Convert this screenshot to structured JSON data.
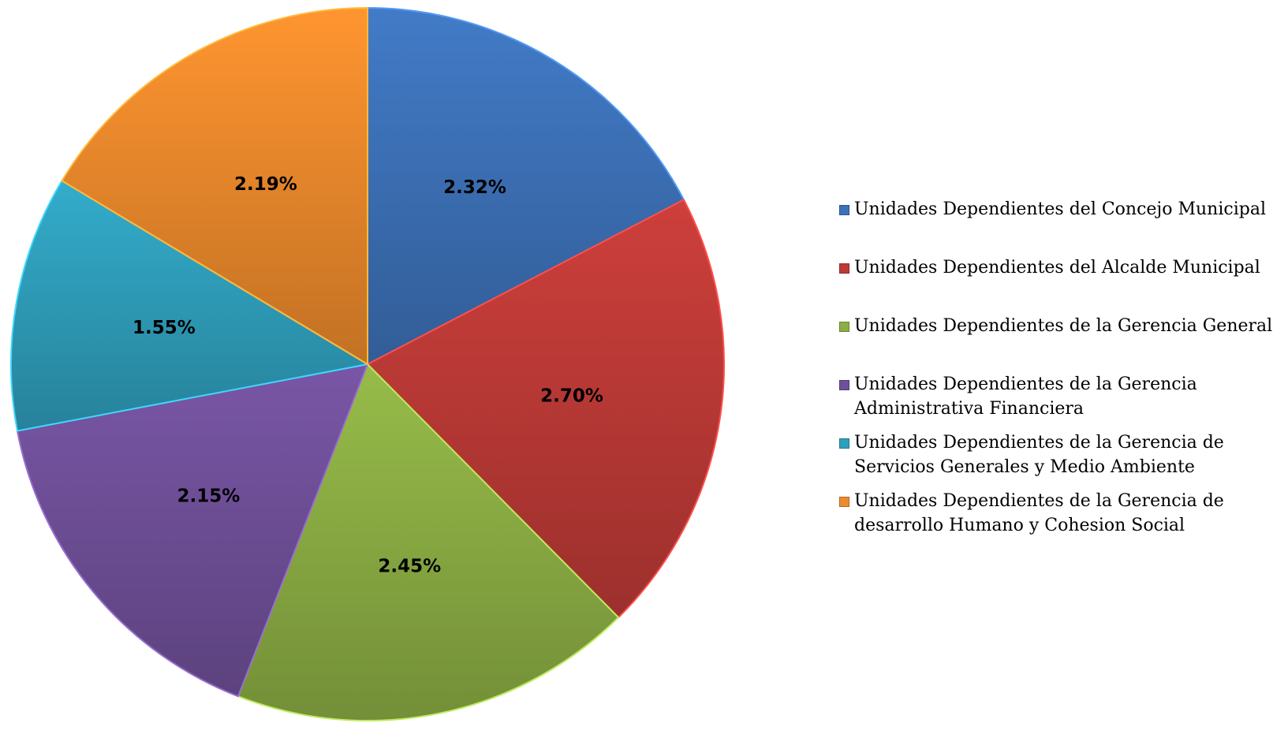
{
  "chart_data": {
    "type": "pie",
    "title": "",
    "categories": [
      "Unidades Dependientes del Concejo Municipal",
      "Unidades Dependientes del Alcalde Municipal",
      "Unidades Dependientes de la Gerencia General",
      "Unidades Dependientes de la Gerencia Administrativa Financiera",
      "Unidades Dependientes de la Gerencia de Servicios Generales y Medio Ambiente",
      "Unidades Dependientes de la Gerencia de desarrollo Humano y Cohesion Social"
    ],
    "values": [
      2.32,
      2.7,
      2.45,
      2.15,
      1.55,
      2.19
    ],
    "value_labels": [
      "2.32%",
      "2.70%",
      "2.45%",
      "2.15%",
      "1.55%",
      "2.19%"
    ],
    "colors": [
      "#3d72b8",
      "#be3a37",
      "#8cae44",
      "#70509a",
      "#2f9fbc",
      "#ec8a2c"
    ],
    "start_angle_deg": 0,
    "direction": "clockwise",
    "legend_position": "right"
  }
}
